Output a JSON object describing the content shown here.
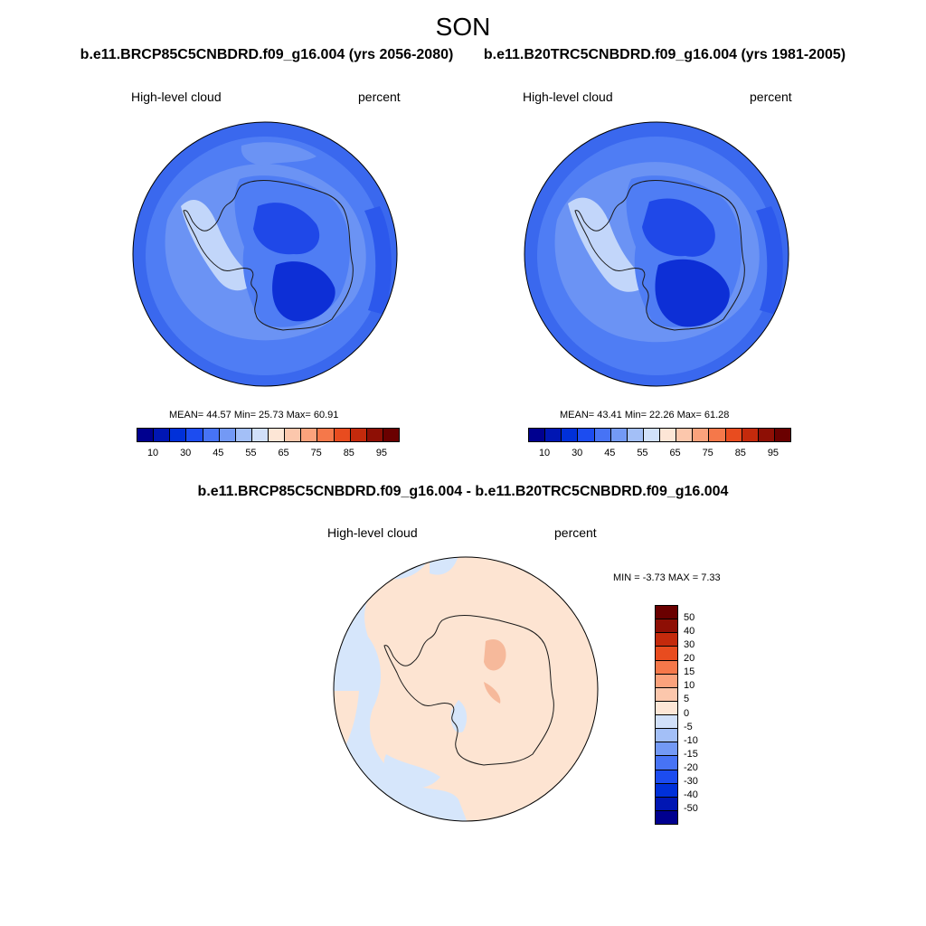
{
  "figure_title": "SON",
  "panels": [
    {
      "id": "run_a",
      "title": "b.e11.BRCP85C5CNBDRD.f09_g16.004 (yrs 2056-2080)",
      "left_label": "High-level cloud",
      "right_label": "percent",
      "stats": "MEAN=  44.57  Min=  25.73  Max=  60.91"
    },
    {
      "id": "run_b",
      "title": "b.e11.B20TRC5CNBDRD.f09_g16.004 (yrs 1981-2005)",
      "left_label": "High-level cloud",
      "right_label": "percent",
      "stats": "MEAN=  43.41  Min=  22.26  Max=  61.28"
    },
    {
      "id": "difference",
      "title": "b.e11.BRCP85C5CNBDRD.f09_g16.004 - b.e11.B20TRC5CNBDRD.f09_g16.004",
      "left_label": "High-level cloud",
      "right_label": "percent",
      "stats": "MIN =  -3.73 MAX =   7.33"
    }
  ],
  "absolute_colorbar": {
    "colors": [
      "#00008f",
      "#0016b3",
      "#0030d9",
      "#1c4cf0",
      "#4773f5",
      "#7399f5",
      "#a3bff7",
      "#d1e0fa",
      "#fde6d6",
      "#fcc7ac",
      "#fba27c",
      "#f5784a",
      "#e84c1f",
      "#c42a0c",
      "#8e0f05",
      "#6a0000"
    ],
    "tick_labels": [
      "10",
      "30",
      "45",
      "55",
      "65",
      "75",
      "85",
      "95"
    ]
  },
  "difference_colorbar": {
    "colors": [
      "#00008f",
      "#0016b3",
      "#0030d9",
      "#1c4cf0",
      "#4773f5",
      "#7399f5",
      "#a3bff7",
      "#d1e0fa",
      "#fde6d6",
      "#fcc7ac",
      "#fba27c",
      "#f5784a",
      "#e84c1f",
      "#c42a0c",
      "#8e0f05",
      "#6a0000"
    ],
    "tick_labels": [
      "50",
      "40",
      "30",
      "20",
      "15",
      "10",
      "5",
      "0",
      "-5",
      "-10",
      "-15",
      "-20",
      "-30",
      "-40",
      "-50"
    ]
  },
  "map_palette": {
    "ocean_mid": "#4f7df4",
    "ocean_outer": "#3a68ee",
    "ring_light": "#8db0f6",
    "ring_medium": "#6b93f4",
    "interior_dark": "#1f48e8",
    "interior_darker": "#0d2fd6",
    "peninsula_light": "#c2d6fa",
    "diff_warm": "#fde4d2",
    "diff_cool": "#d6e6fb",
    "diff_strong_warm": "#f6b99b",
    "coast": "#1a1a1a"
  }
}
